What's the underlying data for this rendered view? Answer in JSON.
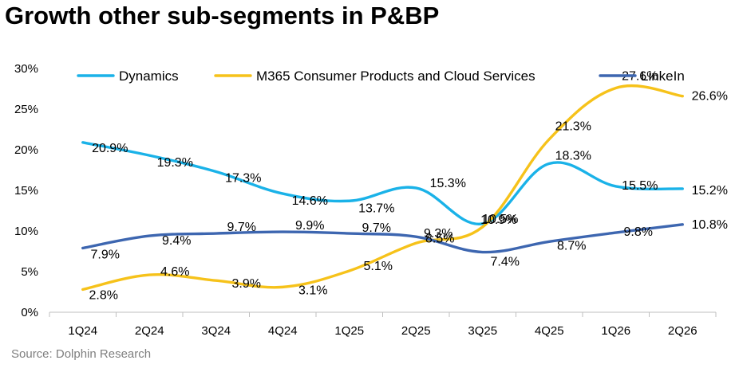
{
  "chart_data": {
    "type": "line",
    "title": "Growth other sub-segments in P&BP",
    "source": "Source: Dolphin Research",
    "categories": [
      "1Q24",
      "2Q24",
      "3Q24",
      "4Q24",
      "1Q25",
      "2Q25",
      "3Q25",
      "4Q25",
      "1Q26",
      "2Q26"
    ],
    "ylim": [
      0,
      30
    ],
    "yticks": [
      0,
      5,
      10,
      15,
      20,
      25,
      30
    ],
    "ytick_labels": [
      "0%",
      "5%",
      "10%",
      "15%",
      "20%",
      "25%",
      "30%"
    ],
    "legend_position": "top",
    "series": [
      {
        "name": "Dynamics",
        "color": "#1ab2e8",
        "values": [
          20.9,
          19.3,
          17.3,
          14.6,
          13.7,
          15.3,
          10.9,
          18.3,
          15.5,
          15.2
        ],
        "labels": [
          "20.9%",
          "19.3%",
          "17.3%",
          "14.6%",
          "13.7%",
          "15.3%",
          "10.9%",
          "18.3%",
          "15.5%",
          "15.2%"
        ]
      },
      {
        "name": "M365 Consumer Products and Cloud Services",
        "color": "#f6c21a",
        "values": [
          2.8,
          4.6,
          3.9,
          3.1,
          5.1,
          8.5,
          10.5,
          21.3,
          27.6,
          26.6
        ],
        "labels": [
          "2.8%",
          "4.6%",
          "3.9%",
          "3.1%",
          "5.1%",
          "8.5%",
          "10.5%",
          "21.3%",
          "27.6%",
          "26.6%"
        ]
      },
      {
        "name": "LinkeIn",
        "color": "#3d66b0",
        "values": [
          7.9,
          9.4,
          9.7,
          9.9,
          9.7,
          9.3,
          7.4,
          8.7,
          9.8,
          10.8
        ],
        "labels": [
          "7.9%",
          "9.4%",
          "9.7%",
          "9.9%",
          "9.7%",
          "9.3%",
          "7.4%",
          "8.7%",
          "9.8%",
          "10.8%"
        ]
      }
    ]
  }
}
